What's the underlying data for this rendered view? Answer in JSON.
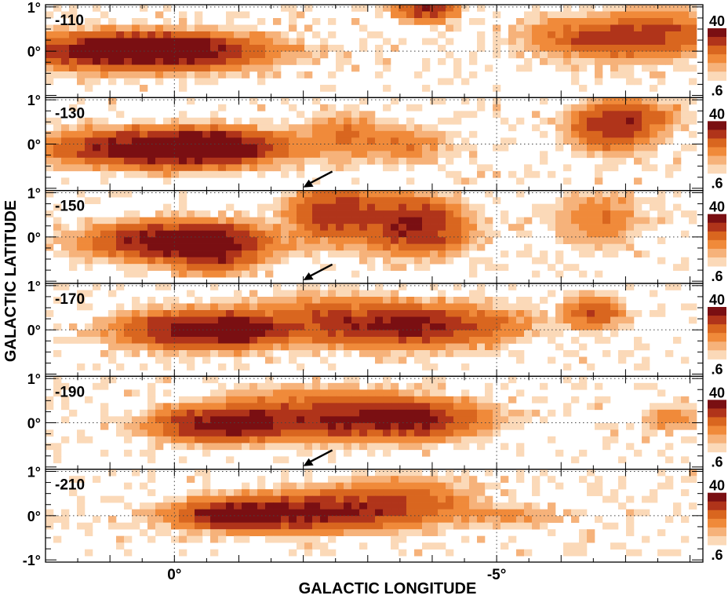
{
  "chart_data": {
    "type": "heatmap",
    "xlabel": "GALACTIC LONGITUDE",
    "ylabel": "GALACTIC LATITUDE",
    "xlim": [
      2.0,
      -8.2
    ],
    "ylim": [
      -1.05,
      1.05
    ],
    "x_ticks": [
      {
        "value": 0,
        "label": "0°"
      },
      {
        "value": -5,
        "label": "-5°"
      }
    ],
    "y_ticks": [
      {
        "value": 1,
        "label": "1°"
      },
      {
        "value": 0,
        "label": "0°"
      },
      {
        "value": -1,
        "label": "-1°"
      }
    ],
    "colorbar": {
      "max_label": "40",
      "min_label": ".6",
      "colors": [
        "#7a0f12",
        "#b0341a",
        "#d9661f",
        "#f08a3a",
        "#f6b27a",
        "#fbd9b8"
      ]
    },
    "grid": "dotted",
    "panels": [
      {
        "velocity_label": "-110",
        "arrow": false,
        "blobs": [
          {
            "l": 0.55,
            "b": 0.0,
            "sl": 1.0,
            "sb": 0.22,
            "peak": 40
          },
          {
            "l": 0.2,
            "b": 0.05,
            "sl": 0.5,
            "sb": 0.15,
            "peak": 30
          },
          {
            "l": -3.9,
            "b": 0.95,
            "sl": 0.25,
            "sb": 0.15,
            "peak": 20
          },
          {
            "l": -6.8,
            "b": 0.3,
            "sl": 0.7,
            "sb": 0.25,
            "peak": 14
          },
          {
            "l": -7.6,
            "b": 0.45,
            "sl": 0.5,
            "sb": 0.3,
            "peak": 8
          }
        ]
      },
      {
        "velocity_label": "-130",
        "arrow": true,
        "blobs": [
          {
            "l": 0.1,
            "b": -0.1,
            "sl": 0.9,
            "sb": 0.22,
            "peak": 40
          },
          {
            "l": -0.5,
            "b": -0.05,
            "sl": 0.5,
            "sb": 0.2,
            "peak": 28
          },
          {
            "l": -2.6,
            "b": 0.2,
            "sl": 0.35,
            "sb": 0.3,
            "peak": 6
          },
          {
            "l": -3.6,
            "b": 0.0,
            "sl": 0.4,
            "sb": 0.25,
            "peak": 5
          },
          {
            "l": -6.8,
            "b": 0.4,
            "sl": 0.35,
            "sb": 0.3,
            "peak": 18
          },
          {
            "l": -7.2,
            "b": 0.6,
            "sl": 0.4,
            "sb": 0.2,
            "peak": 7
          }
        ]
      },
      {
        "velocity_label": "-150",
        "arrow": true,
        "blobs": [
          {
            "l": -0.1,
            "b": -0.1,
            "sl": 0.7,
            "sb": 0.22,
            "peak": 40
          },
          {
            "l": -0.6,
            "b": -0.35,
            "sl": 0.35,
            "sb": 0.25,
            "peak": 20
          },
          {
            "l": -2.5,
            "b": 0.55,
            "sl": 0.4,
            "sb": 0.35,
            "peak": 16
          },
          {
            "l": -3.6,
            "b": 0.3,
            "sl": 0.45,
            "sb": 0.35,
            "peak": 20
          },
          {
            "l": -4.1,
            "b": 0.1,
            "sl": 0.3,
            "sb": 0.3,
            "peak": 6
          },
          {
            "l": -6.6,
            "b": 0.4,
            "sl": 0.4,
            "sb": 0.35,
            "peak": 5
          }
        ]
      },
      {
        "velocity_label": "-170",
        "arrow": false,
        "blobs": [
          {
            "l": -0.5,
            "b": 0.0,
            "sl": 0.7,
            "sb": 0.22,
            "peak": 34
          },
          {
            "l": -1.0,
            "b": 0.0,
            "sl": 0.3,
            "sb": 0.15,
            "peak": 24
          },
          {
            "l": -2.3,
            "b": 0.3,
            "sl": 0.7,
            "sb": 0.3,
            "peak": 6
          },
          {
            "l": -3.6,
            "b": 0.1,
            "sl": 0.85,
            "sb": 0.25,
            "peak": 26
          },
          {
            "l": -6.5,
            "b": 0.4,
            "sl": 0.25,
            "sb": 0.2,
            "peak": 12
          }
        ]
      },
      {
        "velocity_label": "-190",
        "arrow": true,
        "blobs": [
          {
            "l": -0.7,
            "b": -0.05,
            "sl": 0.55,
            "sb": 0.2,
            "peak": 30
          },
          {
            "l": -1.15,
            "b": 0.0,
            "sl": 0.25,
            "sb": 0.15,
            "peak": 32
          },
          {
            "l": -2.0,
            "b": 0.2,
            "sl": 0.8,
            "sb": 0.3,
            "peak": 10
          },
          {
            "l": -3.2,
            "b": 0.1,
            "sl": 0.8,
            "sb": 0.25,
            "peak": 26
          },
          {
            "l": -4.0,
            "b": 0.0,
            "sl": 0.4,
            "sb": 0.2,
            "peak": 6
          },
          {
            "l": -7.7,
            "b": 0.1,
            "sl": 0.25,
            "sb": 0.15,
            "peak": 5
          }
        ]
      },
      {
        "velocity_label": "-210",
        "arrow": false,
        "blobs": [
          {
            "l": -1.0,
            "b": 0.0,
            "sl": 0.4,
            "sb": 0.15,
            "peak": 36
          },
          {
            "l": -1.8,
            "b": 0.05,
            "sl": 0.9,
            "sb": 0.22,
            "peak": 24
          },
          {
            "l": -2.9,
            "b": 0.2,
            "sl": 0.8,
            "sb": 0.25,
            "peak": 10
          },
          {
            "l": -3.6,
            "b": 0.4,
            "sl": 0.6,
            "sb": 0.3,
            "peak": 5
          },
          {
            "l": -5.2,
            "b": 0.0,
            "sl": 0.5,
            "sb": 0.15,
            "peak": 3
          }
        ]
      }
    ]
  }
}
